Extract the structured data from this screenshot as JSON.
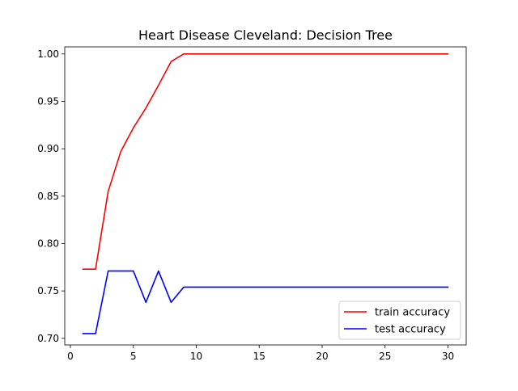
{
  "chart_data": {
    "type": "line",
    "title": "Heart Disease Cleveland: Decision Tree",
    "xlabel": "",
    "ylabel": "",
    "xlim": [
      -0.45,
      31.45
    ],
    "ylim": [
      0.693,
      1.0075
    ],
    "xticks": [
      0,
      5,
      10,
      15,
      20,
      25,
      30
    ],
    "xtick_labels": [
      "0",
      "5",
      "10",
      "15",
      "20",
      "25",
      "30"
    ],
    "yticks": [
      0.7,
      0.75,
      0.8,
      0.85,
      0.9,
      0.95,
      1.0
    ],
    "ytick_labels": [
      "0.70",
      "0.75",
      "0.80",
      "0.85",
      "0.90",
      "0.95",
      "1.00"
    ],
    "grid": false,
    "legend_position": "lower right",
    "x": [
      1,
      2,
      3,
      4,
      5,
      6,
      7,
      8,
      9,
      10,
      11,
      12,
      13,
      14,
      15,
      16,
      17,
      18,
      19,
      20,
      21,
      22,
      23,
      24,
      25,
      26,
      27,
      28,
      29,
      30
    ],
    "series": [
      {
        "name": "train accuracy",
        "color": "#ff0000",
        "values": [
          0.773,
          0.773,
          0.855,
          0.897,
          0.922,
          0.943,
          0.967,
          0.992,
          1.0,
          1.0,
          1.0,
          1.0,
          1.0,
          1.0,
          1.0,
          1.0,
          1.0,
          1.0,
          1.0,
          1.0,
          1.0,
          1.0,
          1.0,
          1.0,
          1.0,
          1.0,
          1.0,
          1.0,
          1.0,
          1.0
        ]
      },
      {
        "name": "test accuracy",
        "color": "#0000ff",
        "values": [
          0.705,
          0.705,
          0.771,
          0.771,
          0.771,
          0.738,
          0.771,
          0.738,
          0.754,
          0.754,
          0.754,
          0.754,
          0.754,
          0.754,
          0.754,
          0.754,
          0.754,
          0.754,
          0.754,
          0.754,
          0.754,
          0.754,
          0.754,
          0.754,
          0.754,
          0.754,
          0.754,
          0.754,
          0.754,
          0.754
        ]
      }
    ]
  }
}
